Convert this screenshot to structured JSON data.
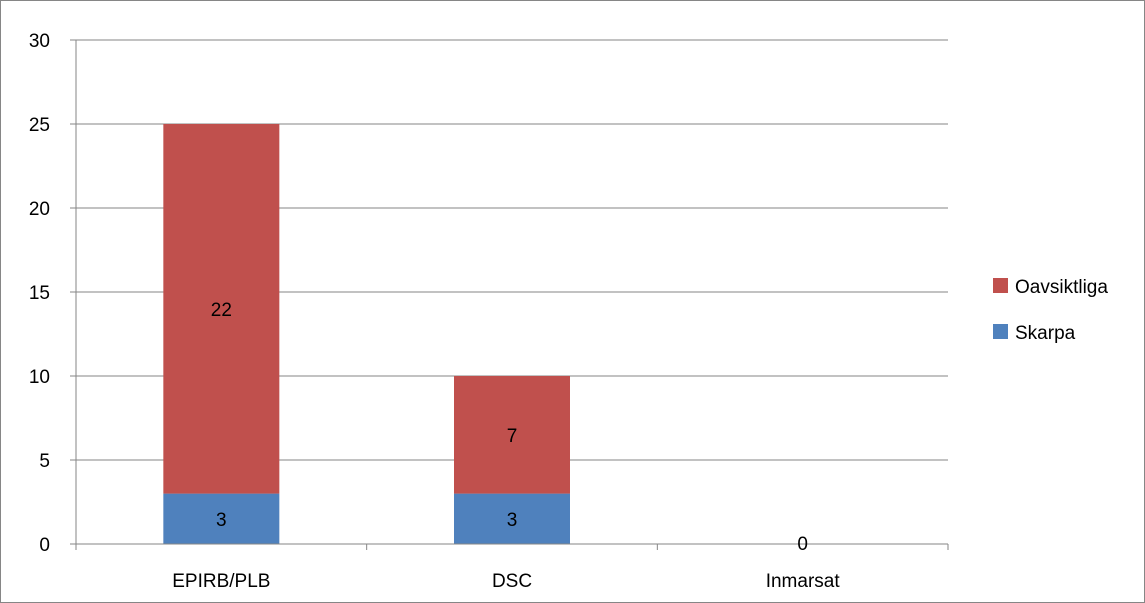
{
  "chart_data": {
    "type": "bar",
    "stacked": true,
    "title": "",
    "xlabel": "",
    "ylabel": "",
    "categories": [
      "EPIRB/PLB",
      "DSC",
      "Inmarsat"
    ],
    "series": [
      {
        "name": "Skarpa",
        "values": [
          3,
          3,
          0
        ],
        "color": "#4F81BD"
      },
      {
        "name": "Oavsiktliga",
        "values": [
          22,
          7,
          0
        ],
        "color": "#C0504D"
      }
    ],
    "data_labels": [
      {
        "series": "Skarpa",
        "category": "EPIRB/PLB",
        "text": "3"
      },
      {
        "series": "Skarpa",
        "category": "DSC",
        "text": "3"
      },
      {
        "series": "Oavsiktliga",
        "category": "EPIRB/PLB",
        "text": "22"
      },
      {
        "series": "Oavsiktliga",
        "category": "DSC",
        "text": "7"
      },
      {
        "series": "Skarpa",
        "category": "Inmarsat",
        "text": "0"
      }
    ],
    "ylim": [
      0,
      30
    ],
    "yticks": [
      0,
      5,
      10,
      15,
      20,
      25,
      30
    ],
    "grid": true,
    "legend": {
      "position": "right",
      "order": [
        "Oavsiktliga",
        "Skarpa"
      ]
    },
    "colors": {
      "gridline": "#868686",
      "axis": "#868686"
    }
  }
}
